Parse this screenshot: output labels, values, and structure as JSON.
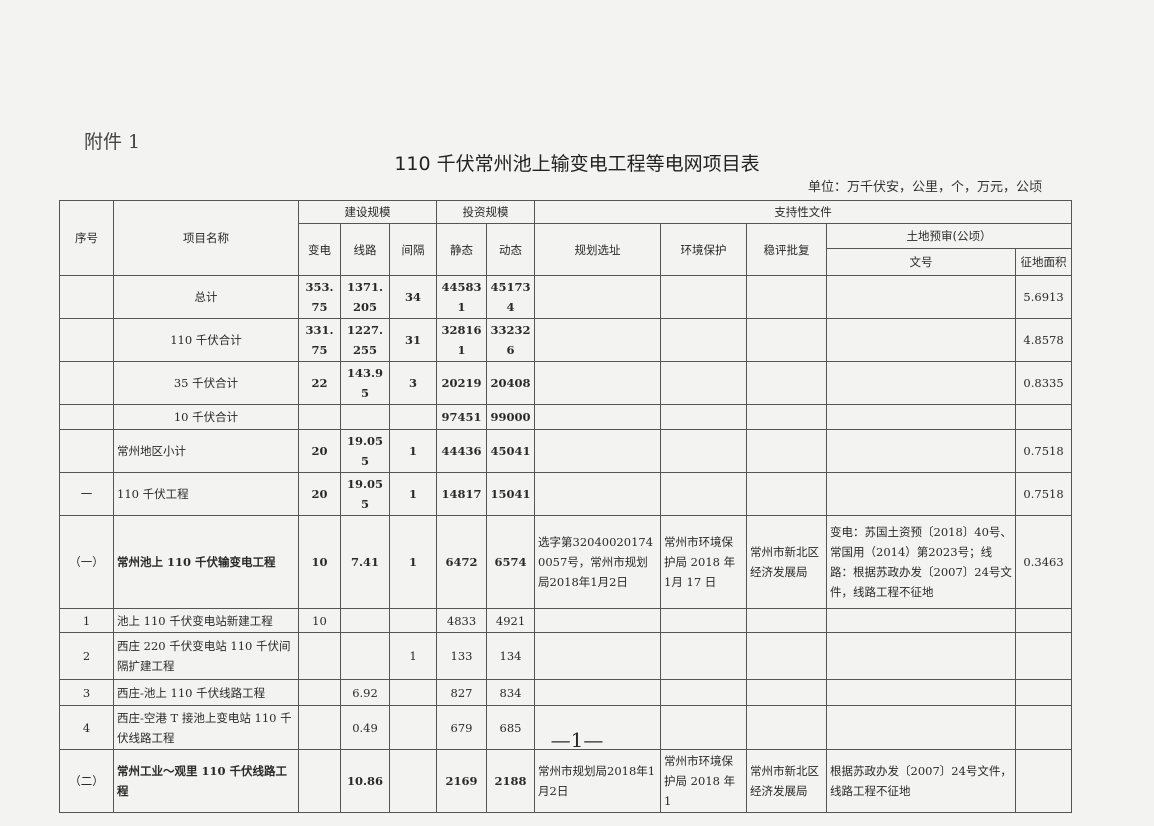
{
  "attachment_label": "附件 1",
  "title": "110 千伏常州池上输变电工程等电网项目表",
  "unit_note": "单位：万千伏安，公里，个，万元，公顷",
  "headers": {
    "seq": "序号",
    "name": "项目名称",
    "build_scale": "建设规模",
    "substation": "变电",
    "line": "线路",
    "bay": "间隔",
    "invest_scale": "投资规模",
    "static": "静态",
    "dynamic": "动态",
    "support_docs": "支持性文件",
    "planning": "规划选址",
    "environment": "环境保护",
    "stability": "稳评批复",
    "land": "土地预审(公顷）",
    "doc_no": "文号",
    "land_area": "征地面积"
  },
  "rows": [
    [
      "",
      "总计",
      "353.75",
      "1371.205",
      "34",
      "445831",
      "451734",
      "",
      "",
      "",
      "",
      "5.6913"
    ],
    [
      "",
      "110 千伏合计",
      "331.75",
      "1227.255",
      "31",
      "328161",
      "332326",
      "",
      "",
      "",
      "",
      "4.8578"
    ],
    [
      "",
      "35 千伏合计",
      "22",
      "143.95",
      "3",
      "20219",
      "20408",
      "",
      "",
      "",
      "",
      "0.8335"
    ],
    [
      "",
      "10 千伏合计",
      "",
      "",
      "",
      "97451",
      "99000",
      "",
      "",
      "",
      "",
      ""
    ],
    [
      "",
      "常州地区小计",
      "20",
      "19.055",
      "1",
      "44436",
      "45041",
      "",
      "",
      "",
      "",
      "0.7518"
    ],
    [
      "一",
      "110 千伏工程",
      "20",
      "19.055",
      "1",
      "14817",
      "15041",
      "",
      "",
      "",
      "",
      "0.7518"
    ],
    [
      "（一）",
      "常州池上 110 千伏输变电工程",
      "10",
      "7.41",
      "1",
      "6472",
      "6574",
      "选字第320400201740057号，常州市规划局2018年1月2日",
      "常州市环境保护局 2018 年 1月 17 日",
      "常州市新北区经济发展局",
      "变电：苏国土资预〔2018〕40号、常国用（2014）第2023号；线路：根据苏政办发〔2007〕24号文件，线路工程不征地",
      "0.3463"
    ],
    [
      "1",
      "池上 110 千伏变电站新建工程",
      "10",
      "",
      "",
      "4833",
      "4921",
      "",
      "",
      "",
      "",
      ""
    ],
    [
      "2",
      "西庄 220 千伏变电站 110 千伏间隔扩建工程",
      "",
      "",
      "1",
      "133",
      "134",
      "",
      "",
      "",
      "",
      ""
    ],
    [
      "3",
      "西庄-池上 110 千伏线路工程",
      "",
      "6.92",
      "",
      "827",
      "834",
      "",
      "",
      "",
      "",
      ""
    ],
    [
      "4",
      "西庄-空港 T 接池上变电站 110 千伏线路工程",
      "",
      "0.49",
      "",
      "679",
      "685",
      "",
      "",
      "",
      "",
      ""
    ],
    [
      "（二）",
      "常州工业～观里 110 千伏线路工程",
      "",
      "10.86",
      "",
      "2169",
      "2188",
      "常州市规划局2018年1月2日",
      "常州市环境保护局 2018 年 1",
      "常州市新北区经济发展局",
      "根据苏政办发〔2007〕24号文件，线路工程不征地",
      ""
    ]
  ],
  "page_number": "—1—"
}
